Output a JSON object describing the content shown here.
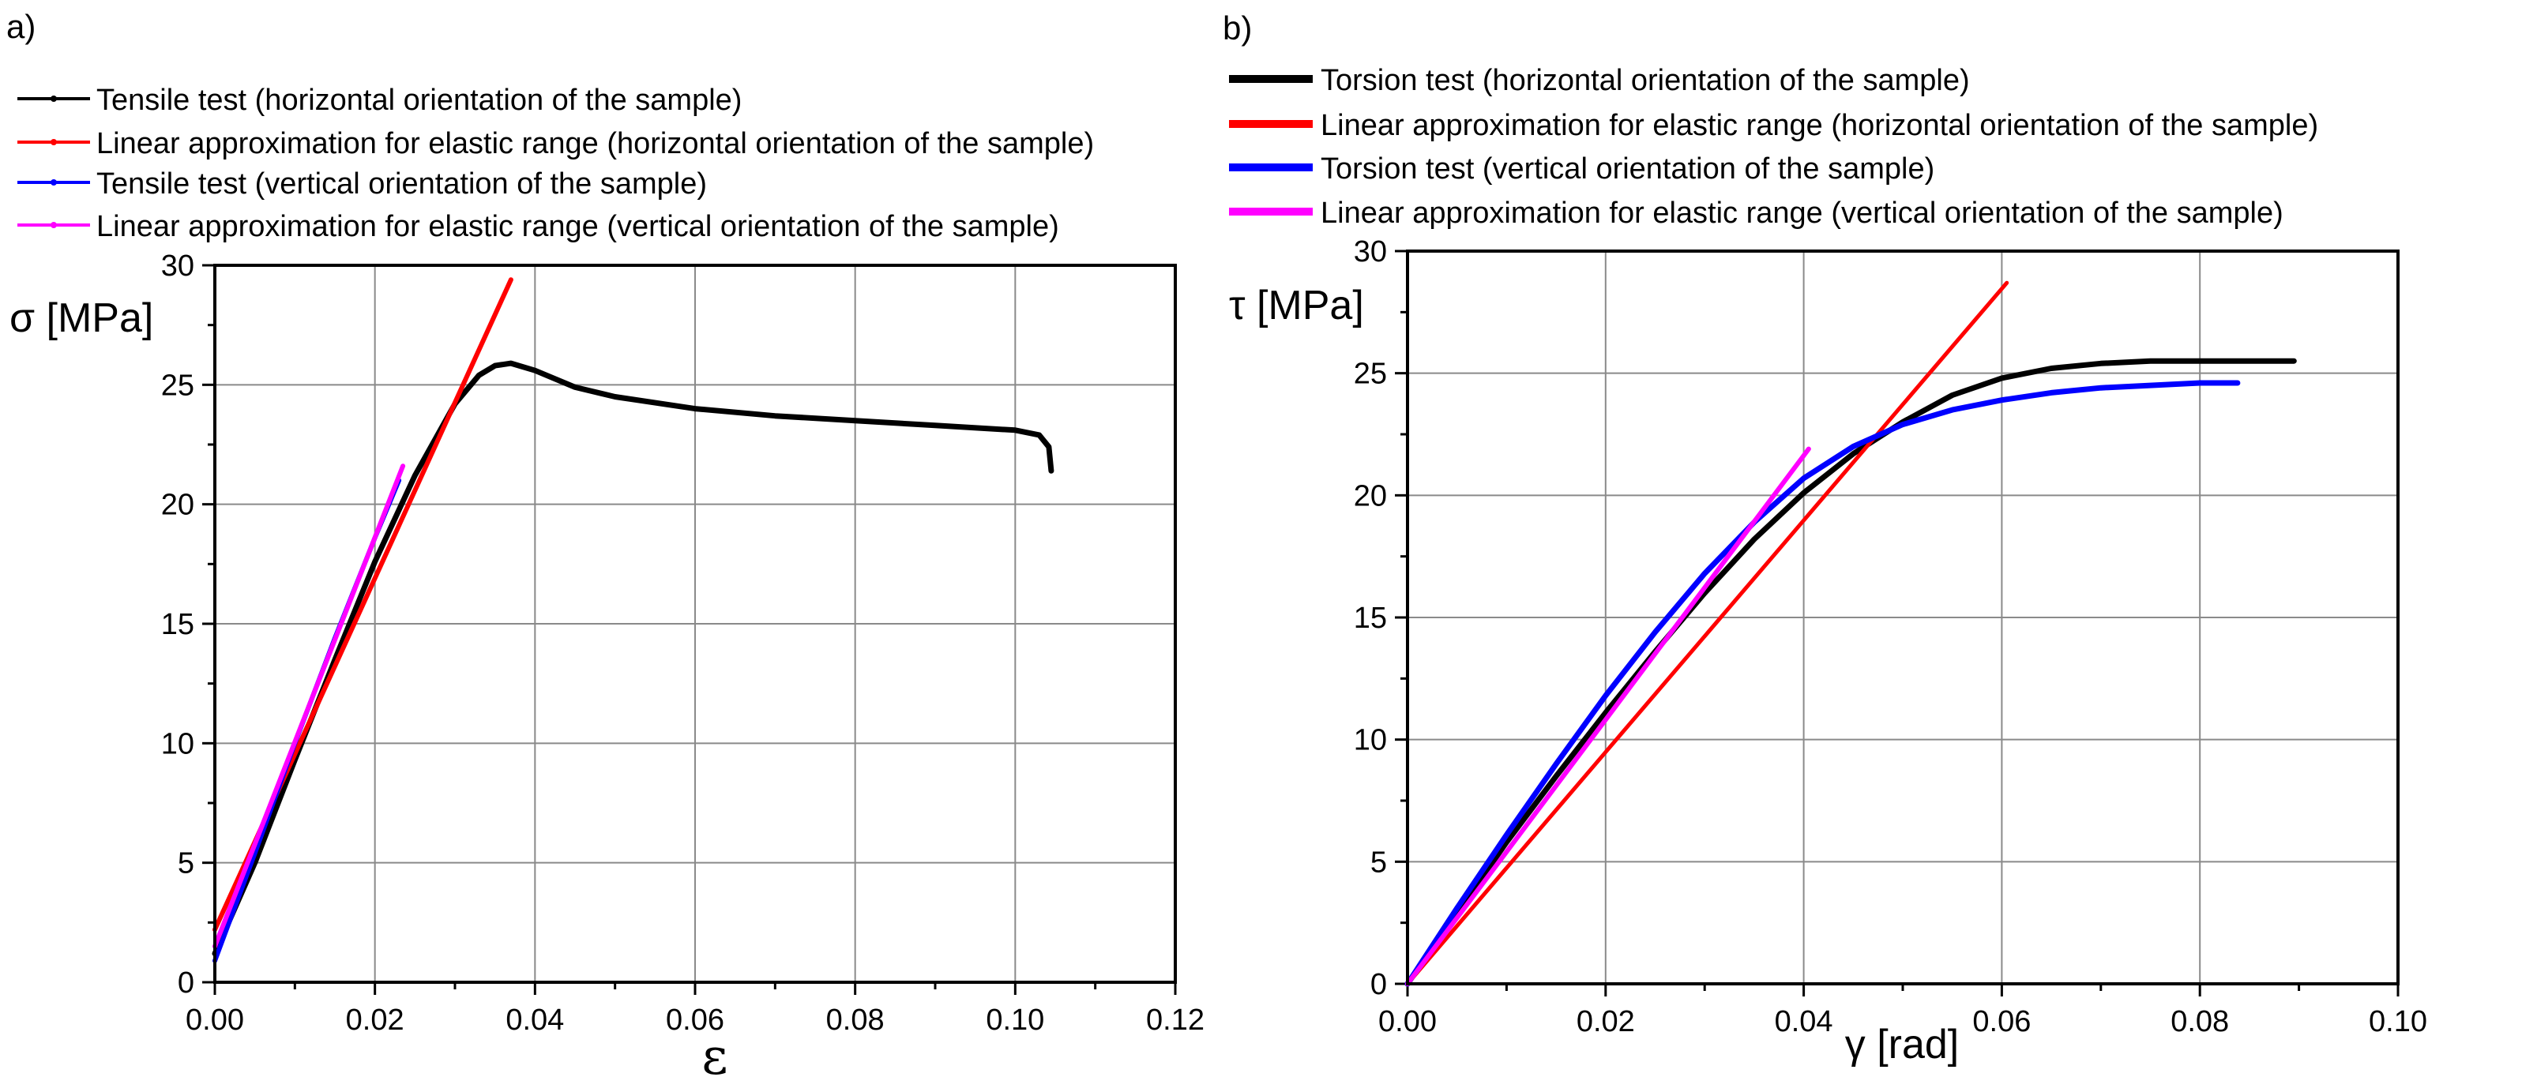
{
  "chart_data": [
    {
      "id": "a",
      "panel_label": "a)",
      "type": "line",
      "title": "",
      "xlabel": "ε",
      "ylabel": "σ [MPa]",
      "xlim": [
        0,
        0.12
      ],
      "ylim": [
        0,
        30
      ],
      "xticks": [
        0.0,
        0.02,
        0.04,
        0.06,
        0.08,
        0.1,
        0.12
      ],
      "xtick_labels": [
        "0.00",
        "0.02",
        "0.04",
        "0.06",
        "0.08",
        "0.10",
        "0.12"
      ],
      "yticks": [
        0,
        5,
        10,
        15,
        20,
        25,
        30
      ],
      "ytick_labels": [
        "0",
        "5",
        "10",
        "15",
        "20",
        "25",
        "30"
      ],
      "grid": true,
      "legend_position": "top-left, above plot",
      "series": [
        {
          "name": "Tensile test (horizontal orientation of the sample)",
          "color": "#000000",
          "marker": "circle",
          "x": [
            0.0,
            0.005,
            0.01,
            0.015,
            0.02,
            0.025,
            0.03,
            0.033,
            0.035,
            0.037,
            0.04,
            0.045,
            0.05,
            0.06,
            0.07,
            0.08,
            0.09,
            0.1,
            0.103,
            0.1042,
            0.1045
          ],
          "y": [
            1.2,
            5.0,
            9.3,
            13.5,
            17.6,
            21.2,
            24.2,
            25.4,
            25.8,
            25.9,
            25.6,
            24.9,
            24.5,
            24.0,
            23.7,
            23.5,
            23.3,
            23.1,
            22.9,
            22.4,
            21.4
          ]
        },
        {
          "name": "Linear approximation for elastic range (horizontal orientation of the sample)",
          "color": "#ff0000",
          "marker": "circle",
          "x": [
            0.0,
            0.037
          ],
          "y": [
            2.2,
            29.4
          ]
        },
        {
          "name": "Tensile test (vertical orientation of the sample)",
          "color": "#0000ff",
          "marker": "triangle-up",
          "x": [
            0.0,
            0.005,
            0.01,
            0.015,
            0.02,
            0.023
          ],
          "y": [
            0.9,
            5.4,
            10.0,
            14.4,
            18.6,
            21.0
          ]
        },
        {
          "name": "Linear approximation for elastic range (vertical orientation of the sample)",
          "color": "#ff00ff",
          "marker": "triangle-down",
          "x": [
            0.0,
            0.0235
          ],
          "y": [
            1.5,
            21.6
          ]
        }
      ]
    },
    {
      "id": "b",
      "panel_label": "b)",
      "type": "line",
      "title": "",
      "xlabel": "γ [rad]",
      "ylabel": "τ [MPa]",
      "xlim": [
        0,
        0.1
      ],
      "ylim": [
        0,
        30
      ],
      "xticks": [
        0.0,
        0.02,
        0.04,
        0.06,
        0.08,
        0.1
      ],
      "xtick_labels": [
        "0.00",
        "0.02",
        "0.04",
        "0.06",
        "0.08",
        "0.10"
      ],
      "yticks": [
        0,
        5,
        10,
        15,
        20,
        25,
        30
      ],
      "ytick_labels": [
        "0",
        "5",
        "10",
        "15",
        "20",
        "25",
        "30"
      ],
      "grid": true,
      "legend_position": "top-left, above plot",
      "series": [
        {
          "name": "Torsion test (horizontal orientation of the sample)",
          "color": "#000000",
          "x": [
            0.0,
            0.005,
            0.01,
            0.015,
            0.02,
            0.025,
            0.03,
            0.035,
            0.04,
            0.045,
            0.05,
            0.055,
            0.06,
            0.065,
            0.07,
            0.075,
            0.08,
            0.085,
            0.0895
          ],
          "y": [
            0.0,
            2.9,
            5.8,
            8.5,
            11.1,
            13.6,
            16.0,
            18.2,
            20.1,
            21.7,
            23.0,
            24.1,
            24.8,
            25.2,
            25.4,
            25.5,
            25.5,
            25.5,
            25.5
          ]
        },
        {
          "name": "Linear approximation for elastic range (horizontal orientation of the sample)",
          "color": "#ff0000",
          "x": [
            0.0,
            0.0605
          ],
          "y": [
            0.0,
            28.7
          ]
        },
        {
          "name": "Torsion test (vertical orientation of the sample)",
          "color": "#0000ff",
          "x": [
            0.0,
            0.005,
            0.01,
            0.015,
            0.02,
            0.025,
            0.03,
            0.035,
            0.04,
            0.045,
            0.05,
            0.055,
            0.06,
            0.065,
            0.07,
            0.075,
            0.08,
            0.0838
          ],
          "y": [
            0.0,
            3.1,
            6.1,
            9.0,
            11.8,
            14.4,
            16.8,
            18.9,
            20.7,
            22.0,
            22.9,
            23.5,
            23.9,
            24.2,
            24.4,
            24.5,
            24.6,
            24.6
          ]
        },
        {
          "name": "Linear approximation for elastic range (vertical orientation of the sample)",
          "color": "#ff00ff",
          "x": [
            0.0,
            0.0405
          ],
          "y": [
            0.0,
            21.9
          ]
        }
      ]
    }
  ]
}
